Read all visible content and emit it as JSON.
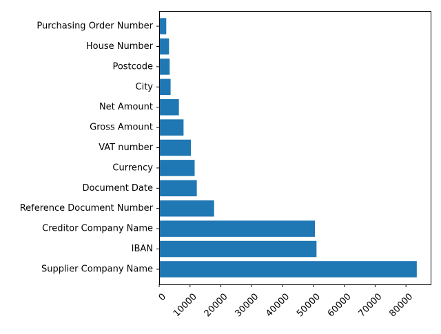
{
  "chart_data": {
    "type": "bar",
    "orientation": "horizontal",
    "title": "",
    "xlabel": "",
    "ylabel": "",
    "categories": [
      "Supplier Company Name",
      "IBAN",
      "Creditor Company Name",
      "Reference Document Number",
      "Document Date",
      "Currency",
      "VAT number",
      "Gross Amount",
      "Net Amount",
      "City",
      "Postcode",
      "House Number",
      "Purchasing Order Number"
    ],
    "values": [
      83500,
      51000,
      50500,
      17800,
      12200,
      11500,
      10300,
      7900,
      6400,
      3700,
      3400,
      3200,
      2300
    ],
    "xlim": [
      0,
      88000
    ],
    "x_ticks": [
      0,
      10000,
      20000,
      30000,
      40000,
      50000,
      60000,
      70000,
      80000
    ],
    "x_tick_labels": [
      "0",
      "10000",
      "20000",
      "30000",
      "40000",
      "50000",
      "60000",
      "70000",
      "80000"
    ],
    "x_tick_rotation": 45,
    "grid": false,
    "legend": "none",
    "bar_color": "#1f77b4"
  }
}
